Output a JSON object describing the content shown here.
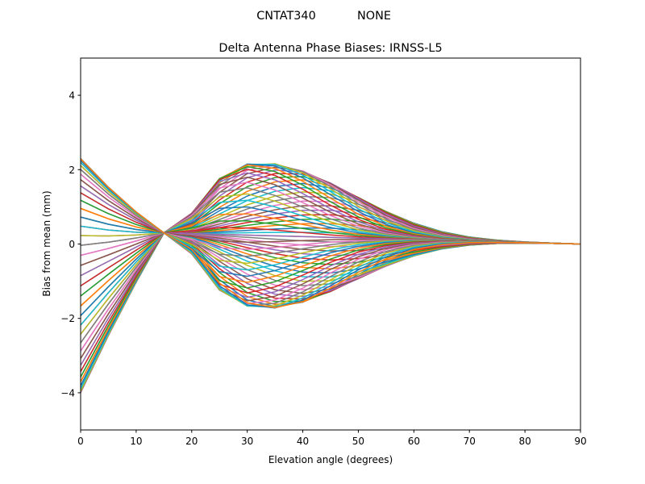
{
  "figure": {
    "suptitle_left": "CNTAT340",
    "suptitle_right": "NONE"
  },
  "chart_data": {
    "type": "line",
    "title": "Delta Antenna Phase Biases: IRNSS-L5",
    "xlabel": "Elevation angle (degrees)",
    "ylabel": "Bias from mean (mm)",
    "xlim": [
      0,
      90
    ],
    "ylim": [
      -5,
      5
    ],
    "xticks": [
      0,
      10,
      20,
      30,
      40,
      50,
      60,
      70,
      80,
      90
    ],
    "yticks": [
      -4,
      -2,
      0,
      2,
      4
    ],
    "grid": false,
    "legend": "none",
    "x": [
      0,
      5,
      10,
      15,
      20,
      25,
      30,
      35,
      40,
      45,
      50,
      55,
      60,
      65,
      70,
      75,
      80,
      85,
      90
    ],
    "series_count": 72,
    "series_description": "72 curves, one per azimuth, all converging to 0 at 90 degrees; at 0 degrees they range from -4.0 to 2.3 mm",
    "curve_shape": {
      "start_range": [
        -4.0,
        2.3
      ],
      "crossover_x": 15,
      "crossover_y": 0.3,
      "mid_peak_max": 2.15,
      "mid_trough_min": -1.35,
      "end_value": 0
    },
    "colors": [
      "#1f77b4",
      "#ff7f0e",
      "#2ca02c",
      "#d62728",
      "#9467bd",
      "#8c564b",
      "#e377c2",
      "#7f7f7f",
      "#bcbd22",
      "#17becf"
    ]
  }
}
